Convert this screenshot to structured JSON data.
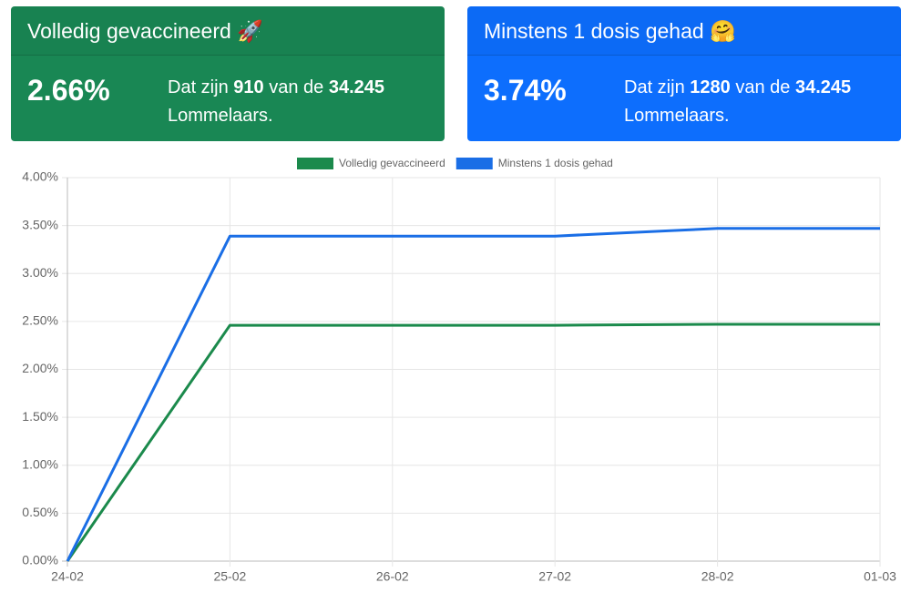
{
  "cards": [
    {
      "title": "Volledig gevaccineerd 🚀",
      "percent": "2.66%",
      "text_pre": "Dat zijn",
      "count": "910",
      "text_mid": "van de",
      "total": "34.245",
      "text_post": "Lommelaars.",
      "color": "#198754"
    },
    {
      "title": "Minstens 1 dosis gehad 🤗",
      "percent": "3.74%",
      "text_pre": "Dat zijn",
      "count": "1280",
      "text_mid": "van de",
      "total": "34.245",
      "text_post": "Lommelaars.",
      "color": "#0d6efd"
    }
  ],
  "chart_data": {
    "type": "line",
    "x": [
      "24-02",
      "25-02",
      "26-02",
      "27-02",
      "28-02",
      "01-03"
    ],
    "series": [
      {
        "name": "Volledig gevaccineerd",
        "color": "#1b8a4c",
        "values": [
          0,
          2.46,
          2.46,
          2.46,
          2.47,
          2.47
        ]
      },
      {
        "name": "Minstens 1 dosis gehad",
        "color": "#1a6ee6",
        "values": [
          0,
          3.39,
          3.39,
          3.39,
          3.47,
          3.47
        ]
      }
    ],
    "ylim": [
      0,
      4
    ],
    "yticks": [
      {
        "value": 0,
        "label": "0.00%"
      },
      {
        "value": 0.5,
        "label": "0.50%"
      },
      {
        "value": 1,
        "label": "1.00%"
      },
      {
        "value": 1.5,
        "label": "1.50%"
      },
      {
        "value": 2,
        "label": "2.00%"
      },
      {
        "value": 2.5,
        "label": "2.50%"
      },
      {
        "value": 3,
        "label": "3.00%"
      },
      {
        "value": 3.5,
        "label": "3.50%"
      },
      {
        "value": 4,
        "label": "4.00%"
      }
    ],
    "grid": true,
    "legend": "top"
  }
}
